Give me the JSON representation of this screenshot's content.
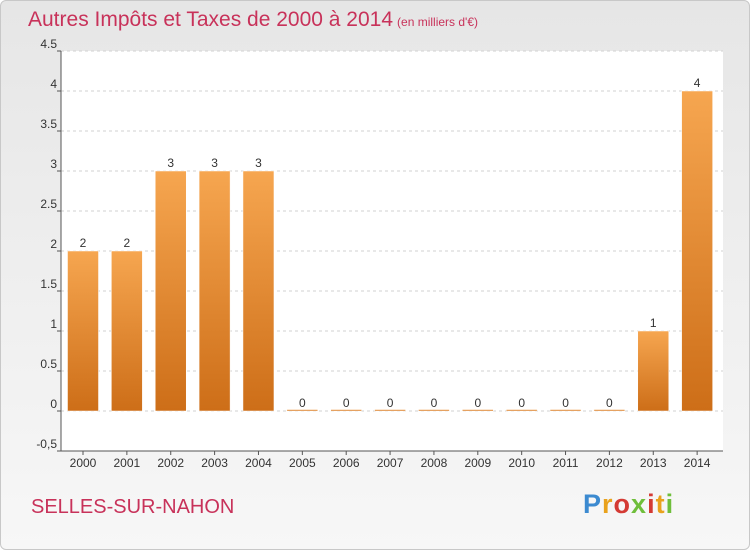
{
  "title": "Autres Impôts et Taxes de 2000 à 2014",
  "unit": "(en milliers d'€)",
  "town": "SELLES-SUR-NAHON",
  "logo": {
    "text": "Proxiti"
  },
  "colors": {
    "title": "#c8325a",
    "bar_light": "#f6a650",
    "bar_dark": "#cd6e18",
    "grid": "#d2d2d2",
    "axis": "#555555"
  },
  "chart_data": {
    "type": "bar",
    "categories": [
      "2000",
      "2001",
      "2002",
      "2003",
      "2004",
      "2005",
      "2006",
      "2007",
      "2008",
      "2009",
      "2010",
      "2011",
      "2012",
      "2013",
      "2014"
    ],
    "values": [
      2,
      2,
      3,
      3,
      3,
      0,
      0,
      0,
      0,
      0,
      0,
      0,
      0,
      1,
      4
    ],
    "data_labels": [
      "2",
      "2",
      "3",
      "3",
      "3",
      "0",
      "0",
      "0",
      "0",
      "0",
      "0",
      "0",
      "0",
      "1",
      "4"
    ],
    "y_ticks": [
      -0.5,
      0,
      0.5,
      1,
      1.5,
      2,
      2.5,
      3,
      3.5,
      4,
      4.5
    ],
    "y_tick_labels": [
      "-0,5",
      "0",
      "0.5",
      "1",
      "1.5",
      "2",
      "2.5",
      "3",
      "3.5",
      "4",
      "4.5"
    ],
    "ylim": [
      -0.5,
      4.5
    ],
    "grid": true,
    "legend": false
  }
}
